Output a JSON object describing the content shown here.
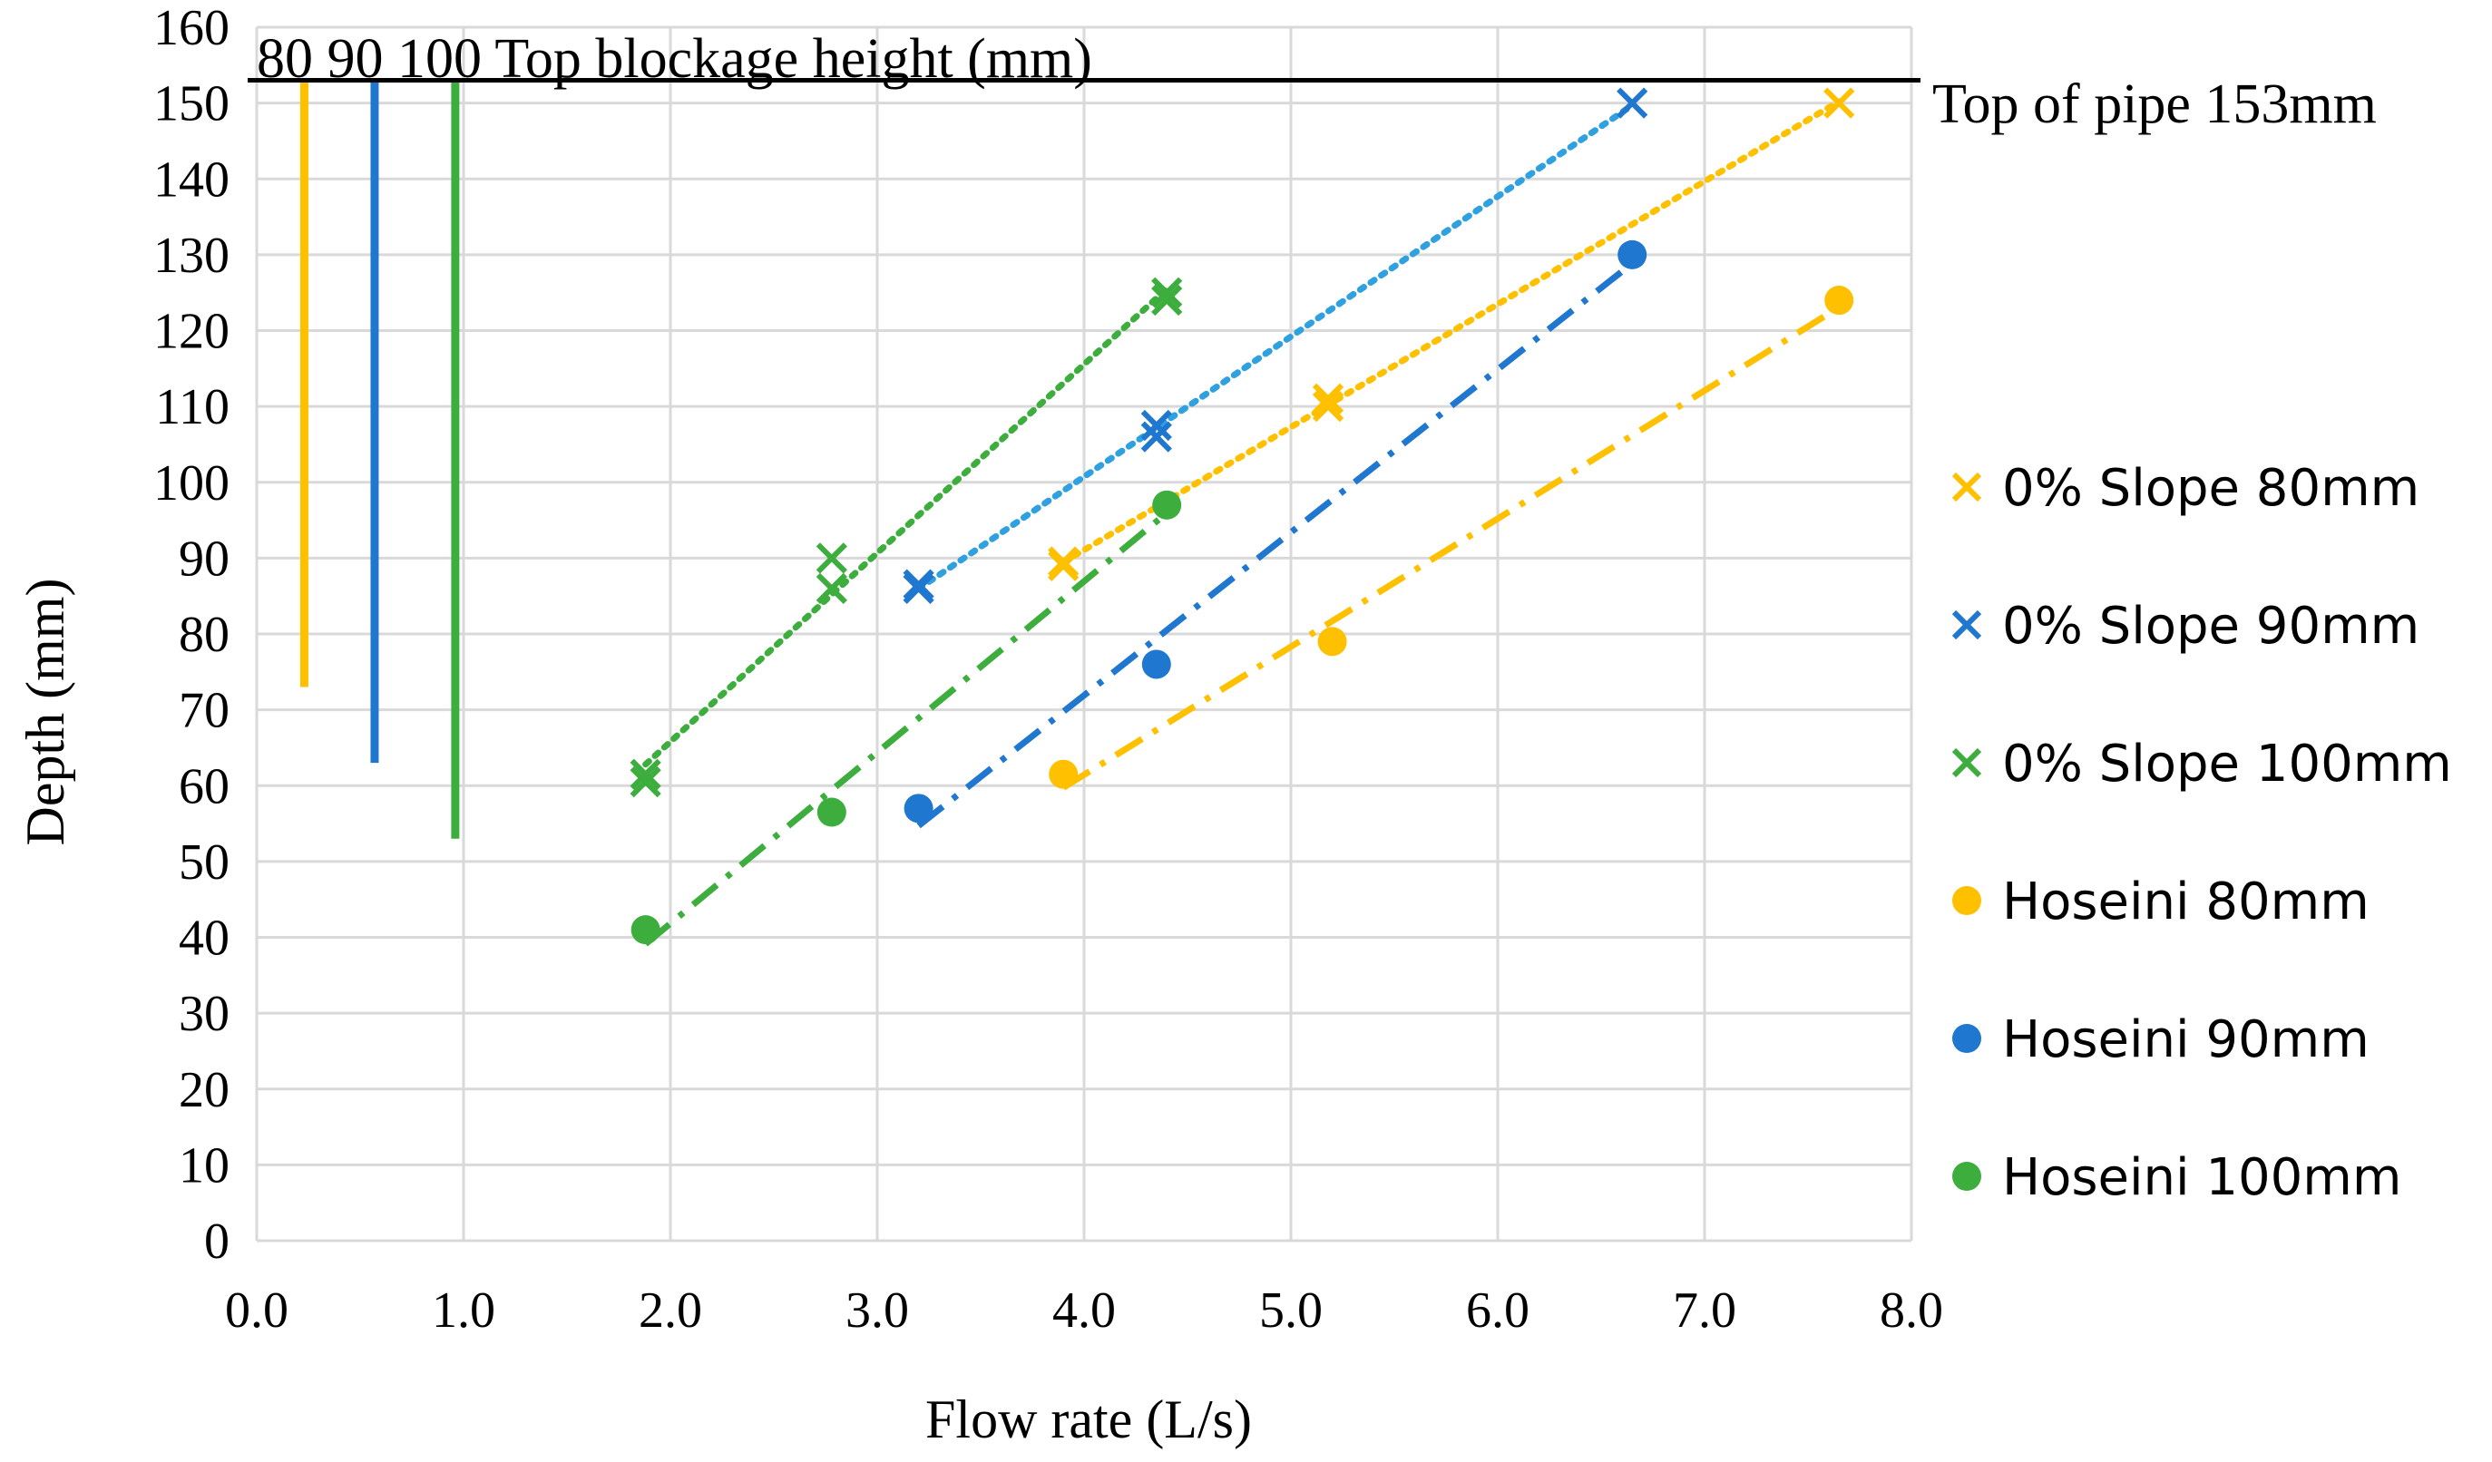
{
  "chart_data": {
    "type": "scatter",
    "title": "",
    "xlabel": "Flow rate (L/s)",
    "ylabel": "Depth (mm)",
    "xlim": [
      0,
      8
    ],
    "ylim": [
      0,
      160
    ],
    "x_ticks": [
      "0.0",
      "1.0",
      "2.0",
      "3.0",
      "4.0",
      "5.0",
      "6.0",
      "7.0",
      "8.0"
    ],
    "y_ticks": [
      "0",
      "10",
      "20",
      "30",
      "40",
      "50",
      "60",
      "70",
      "80",
      "90",
      "100",
      "110",
      "120",
      "130",
      "140",
      "150",
      "160"
    ],
    "grid": true,
    "legend_position": "right",
    "colors": {
      "yellow": "#FFC000",
      "blue": "#1F77D0",
      "green": "#3DAE3D",
      "lightblue": "#2FA0E0",
      "black": "#000000",
      "grid": "#D9D9D9"
    },
    "top_of_pipe": {
      "y": 153,
      "label": "Top of pipe 153mm"
    },
    "blockage_annotation": {
      "labels": [
        "80",
        "90",
        "100"
      ],
      "suffix": "Top blockage height (mm)"
    },
    "blockage_lines": [
      {
        "name": "80mm",
        "x": 0.23,
        "y_start": 73,
        "y_end": 153,
        "color": "#FFC000"
      },
      {
        "name": "90mm",
        "x": 0.57,
        "y_start": 63,
        "y_end": 153,
        "color": "#1F77D0"
      },
      {
        "name": "100mm",
        "x": 0.96,
        "y_start": 53,
        "y_end": 153,
        "color": "#3DAE3D"
      }
    ],
    "series": [
      {
        "name": "0% Slope 80mm",
        "marker": "x",
        "color": "#FFC000",
        "trend": "dotted",
        "trend_color": "#FFC000",
        "x": [
          3.9,
          3.9,
          5.18,
          5.18,
          7.65
        ],
        "y": [
          89,
          89.5,
          110,
          111,
          150
        ]
      },
      {
        "name": "0% Slope 90mm",
        "marker": "x",
        "color": "#1F77D0",
        "trend": "dotted",
        "trend_color": "#2FA0E0",
        "x": [
          3.2,
          3.2,
          4.35,
          4.35,
          6.65
        ],
        "y": [
          86,
          86.5,
          106,
          107.5,
          150
        ]
      },
      {
        "name": "0% Slope 100mm",
        "marker": "x",
        "color": "#3DAE3D",
        "trend": "dotted",
        "trend_color": "#3DAE3D",
        "x": [
          1.88,
          1.88,
          2.78,
          2.78,
          4.4,
          4.4
        ],
        "y": [
          60.5,
          61.5,
          86,
          90,
          124,
          125
        ]
      },
      {
        "name": "Hoseini 80mm",
        "marker": "dot",
        "color": "#FFC000",
        "trend": "dashdot",
        "trend_color": "#FFC000",
        "x": [
          3.9,
          5.2,
          7.65
        ],
        "y": [
          61.5,
          79,
          124
        ]
      },
      {
        "name": "Hoseini 90mm",
        "marker": "dot",
        "color": "#1F77D0",
        "trend": "dashdot",
        "trend_color": "#1F77D0",
        "x": [
          3.2,
          4.35,
          6.65
        ],
        "y": [
          57,
          76,
          130
        ]
      },
      {
        "name": "Hoseini 100mm",
        "marker": "dot",
        "color": "#3DAE3D",
        "trend": "dashdot",
        "trend_color": "#3DAE3D",
        "x": [
          1.88,
          2.78,
          4.4
        ],
        "y": [
          41,
          56.5,
          97
        ]
      }
    ]
  }
}
